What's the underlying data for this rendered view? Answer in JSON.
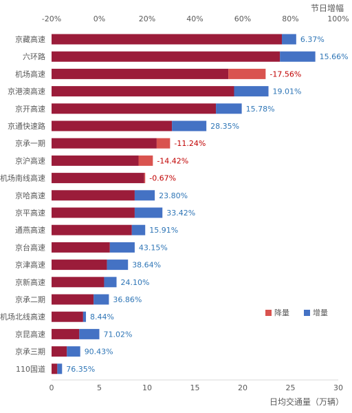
{
  "chart_data": {
    "type": "bar",
    "orientation": "horizontal",
    "stacked": true,
    "categories": [
      "京藏高速",
      "六环路",
      "机场高速",
      "京港澳高速",
      "京开高速",
      "京通快速路",
      "京承一期",
      "京沪高速",
      "机场南线高速",
      "京哈高速",
      "京平高速",
      "通燕高速",
      "京台高速",
      "京津高速",
      "京新高速",
      "京承二期",
      "机场北线高速",
      "京昆高速",
      "京承三期",
      "110国道"
    ],
    "base_values": [
      24.1,
      23.9,
      18.5,
      19.1,
      17.2,
      12.6,
      11.0,
      9.1,
      9.7,
      8.7,
      8.7,
      8.4,
      6.1,
      5.8,
      5.5,
      4.4,
      3.3,
      2.9,
      1.6,
      0.6
    ],
    "increment_values": [
      1.5,
      3.7,
      3.9,
      3.6,
      2.7,
      3.6,
      1.4,
      1.5,
      0.1,
      2.1,
      2.9,
      1.4,
      2.6,
      2.2,
      1.3,
      1.6,
      0.3,
      2.1,
      1.4,
      0.5
    ],
    "change_labels": [
      "6.37%",
      "15.66%",
      "-17.56%",
      "19.01%",
      "15.78%",
      "28.35%",
      "-11.24%",
      "-14.42%",
      "-0.67%",
      "23.80%",
      "33.42%",
      "15.91%",
      "43.15%",
      "38.64%",
      "24.10%",
      "36.86%",
      "8.44%",
      "71.02%",
      "90.43%",
      "76.35%"
    ],
    "change_directions": [
      "up",
      "up",
      "down",
      "up",
      "up",
      "up",
      "down",
      "down",
      "down",
      "up",
      "up",
      "up",
      "up",
      "up",
      "up",
      "up",
      "up",
      "up",
      "up",
      "up"
    ],
    "bottom_axis": {
      "label": "日均交通量（万辆）",
      "range": [
        0,
        30
      ],
      "ticks": [
        "0",
        "5",
        "10",
        "15",
        "20",
        "25",
        "30"
      ]
    },
    "top_axis": {
      "label": "节日增幅",
      "range": [
        -20,
        100
      ],
      "ticks": [
        "-20%",
        "0%",
        "20%",
        "40%",
        "60%",
        "80%",
        "100%"
      ]
    },
    "legend": {
      "position": "bottom-right",
      "items": [
        {
          "label": "降量",
          "color": "#d9534f"
        },
        {
          "label": "增量",
          "color": "#4472c4"
        }
      ]
    },
    "colors": {
      "base": "#9b1c3a",
      "increase": "#4472c4",
      "decrease": "#d9534f",
      "label_increase": "#2e75b6",
      "label_decrease": "#c00000",
      "axis_text": "#595959",
      "axis_line": "#d9d9d9"
    },
    "grid": false
  }
}
